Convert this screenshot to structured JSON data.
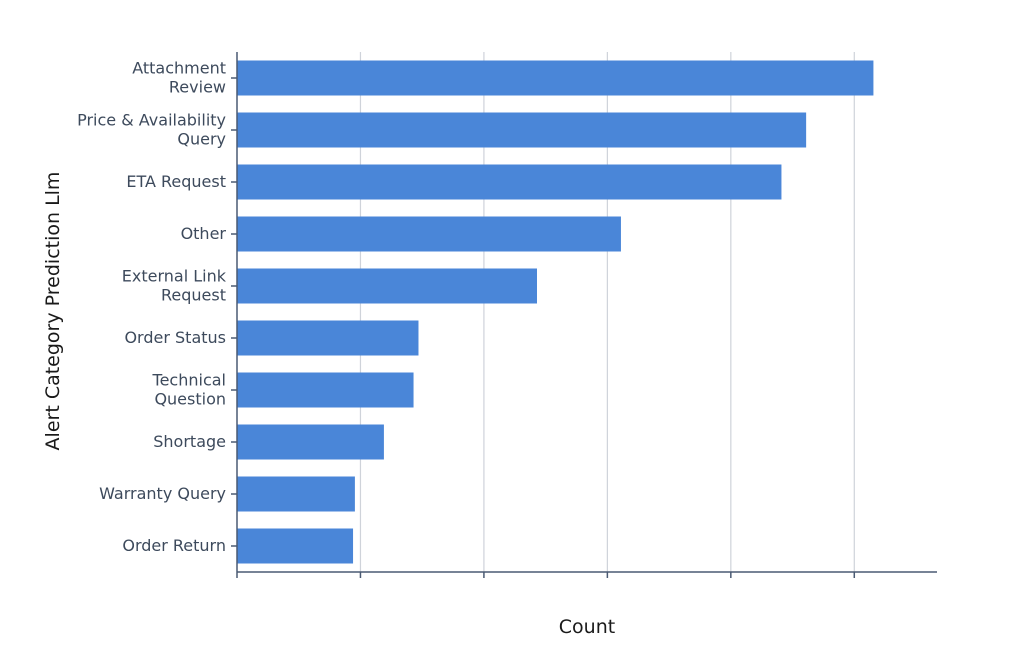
{
  "chart_data": {
    "type": "bar",
    "orientation": "horizontal",
    "title": "",
    "xlabel": "Count",
    "ylabel": "Alert Category Prediction Llm",
    "categories": [
      [
        "Attachment",
        "Review"
      ],
      [
        "Price & Availability",
        "Query"
      ],
      [
        "ETA Request"
      ],
      [
        "Other"
      ],
      [
        "External Link",
        "Request"
      ],
      [
        "Order Status"
      ],
      [
        "Technical",
        "Question"
      ],
      [
        "Shortage"
      ],
      [
        "Warranty Query"
      ],
      [
        "Order Return"
      ]
    ],
    "values": [
      515.5,
      461,
      441,
      311,
      243,
      147,
      143,
      119,
      95.5,
      94
    ],
    "xlim": [
      0,
      567
    ],
    "x_tick_values": [
      0,
      100,
      200,
      300,
      400,
      500
    ],
    "x_tick_labels_visible": false,
    "grid": true,
    "bar_color": "#4a86d8",
    "grid_color": "#cfd3da",
    "axis_color": "#4a5a73"
  }
}
